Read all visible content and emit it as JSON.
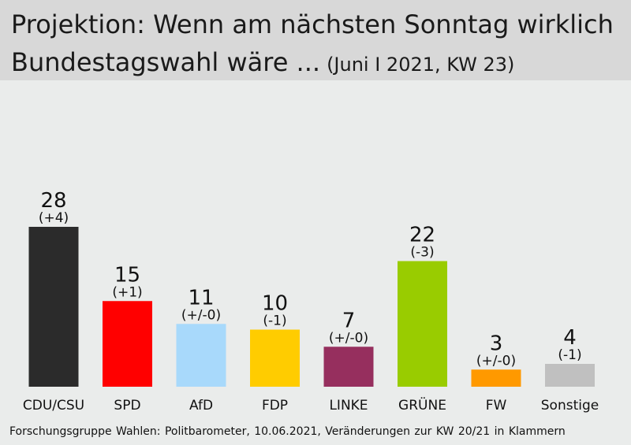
{
  "header": {
    "title_line1": "Projektion: Wenn am nächsten Sonntag wirklich",
    "title_line2": "Bundestagswahl wäre ...",
    "subtitle": "(Juni I 2021, KW 23)"
  },
  "source": "Forschungsgruppe Wahlen: Politbarometer, 10.06.2021, Veränderungen zur KW 20/21 in Klammern",
  "chart_data": {
    "type": "bar",
    "title": "Projektion: Wenn am nächsten Sonntag wirklich Bundestagswahl wäre ... (Juni I 2021, KW 23)",
    "categories": [
      "CDU/CSU",
      "SPD",
      "AfD",
      "FDP",
      "LINKE",
      "GRÜNE",
      "FW",
      "Sonstige"
    ],
    "values": [
      28,
      15,
      11,
      10,
      7,
      22,
      3,
      4
    ],
    "changes": [
      "(+4)",
      "(+1)",
      "(+/-0)",
      "(-1)",
      "(+/-0)",
      "(-3)",
      "(+/-0)",
      "(-1)"
    ],
    "colors": [
      "#2b2b2b",
      "#ff0000",
      "#a8d9fb",
      "#ffcc00",
      "#962f5e",
      "#99cc00",
      "#ff9900",
      "#c0c0c0"
    ],
    "xlabel": "",
    "ylabel": "",
    "ylim": [
      0,
      28
    ],
    "grid": false,
    "legend": "none"
  }
}
